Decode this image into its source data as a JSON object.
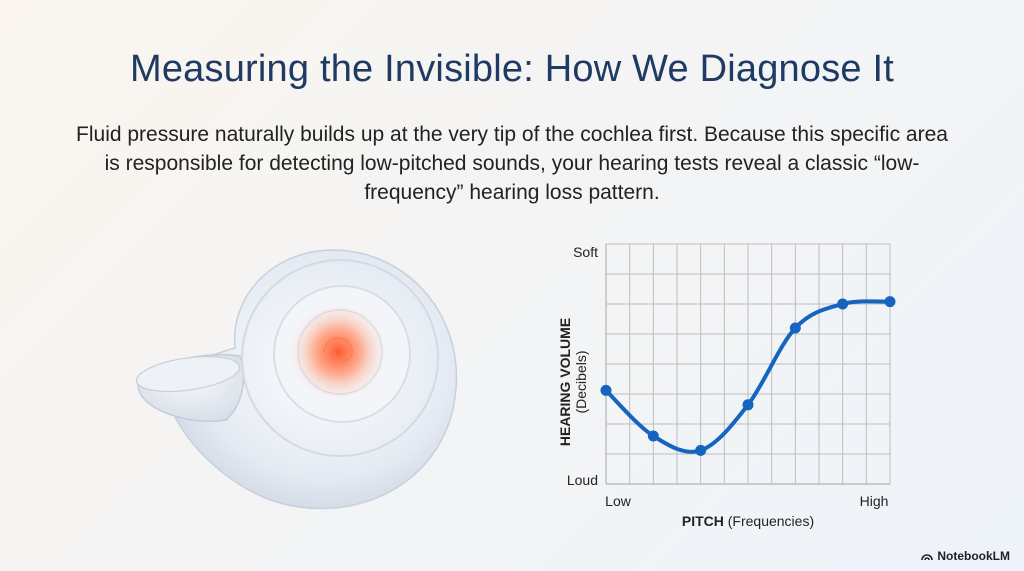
{
  "title": "Measuring the Invisible: How We Diagnose It",
  "subtitle": "Fluid pressure naturally builds up at the very tip of the cochlea first. Because this specific area is responsible for detecting low-pitched sounds, your hearing tests reveal a classic “low-frequency” hearing loss pattern.",
  "illustration": {
    "icon": "cochlea-icon"
  },
  "brand": {
    "label": "NotebookLM",
    "icon": "notebooklm-icon"
  },
  "colors": {
    "title": "#1f3a63",
    "line": "#1565c0",
    "grid": "#bdbdbd",
    "hotspot": "#ff6a3d"
  },
  "chart_data": {
    "type": "line",
    "title": "",
    "xlabel_bold": "PITCH",
    "xlabel_rest": "(Frequencies)",
    "ylabel_bold": "HEARING VOLUME",
    "ylabel_rest": "(Decibels)",
    "x_tick_labels": [
      "Low",
      "High"
    ],
    "y_tick_labels": [
      "Soft",
      "Loud"
    ],
    "xlim": [
      0,
      6
    ],
    "ylim": [
      0,
      10
    ],
    "grid": true,
    "series": [
      {
        "name": "hearing",
        "x": [
          0,
          1,
          2,
          3,
          4,
          5,
          6
        ],
        "y": [
          3.9,
          2.0,
          1.4,
          3.3,
          6.5,
          7.5,
          7.6
        ]
      }
    ]
  }
}
